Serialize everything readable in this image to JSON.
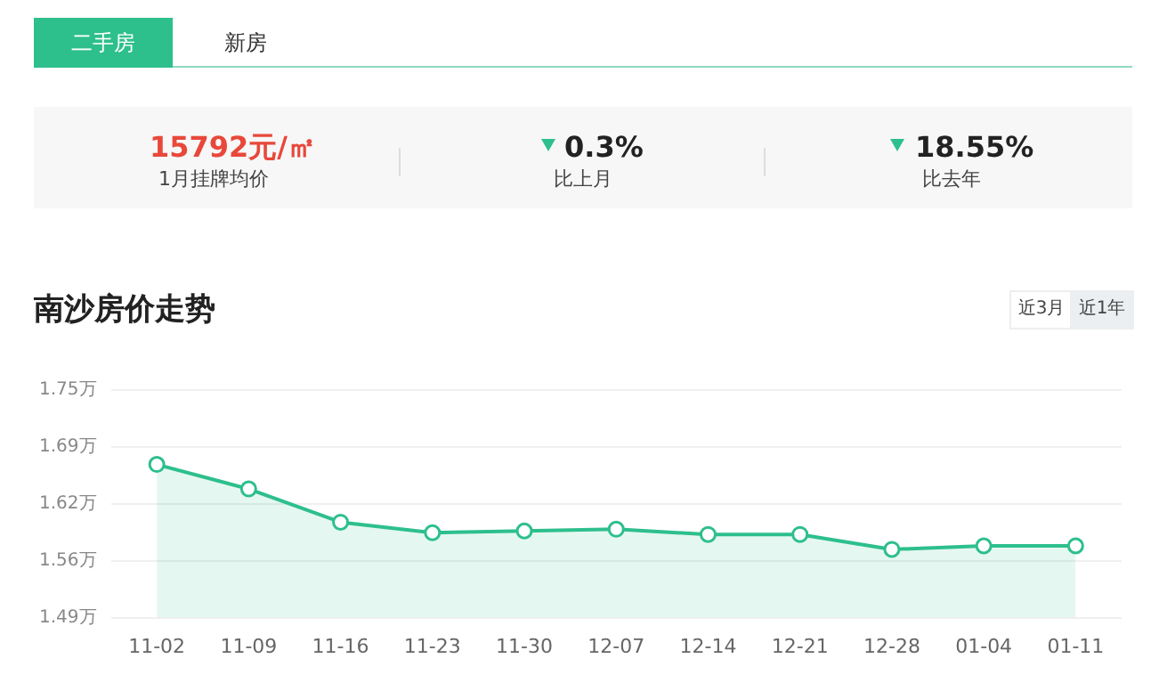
{
  "chart_data": {
    "type": "area",
    "title": "南沙房价走势",
    "annotations": [
      "二手房",
      "新房",
      "15792元/㎡",
      "1月挂牌均价",
      "0.3%",
      "比上月",
      "18.55%",
      "比去年",
      "近3月",
      "近1年"
    ],
    "categories": [
      "11-02",
      "11-09",
      "11-16",
      "11-23",
      "11-30",
      "12-07",
      "12-14",
      "12-21",
      "12-28",
      "01-04",
      "01-11"
    ],
    "series": [
      {
        "color": "#2dbf8c",
        "values": [
          1.665,
          1.637,
          1.599,
          1.587,
          1.589,
          1.591,
          1.585,
          1.585,
          1.568,
          1.572,
          1.572
        ]
      }
    ],
    "ylim": [
      1.49,
      1.75
    ],
    "yticks": [
      {
        "value": 1.49,
        "label": "1.49万"
      },
      {
        "value": 1.555,
        "label": "1.56万"
      },
      {
        "value": 1.62,
        "label": "1.62万"
      },
      {
        "value": 1.685,
        "label": "1.69万"
      },
      {
        "value": 1.75,
        "label": "1.75万"
      }
    ],
    "grid": "y",
    "legend": false,
    "marker": "circle",
    "line_style": "solid"
  }
}
